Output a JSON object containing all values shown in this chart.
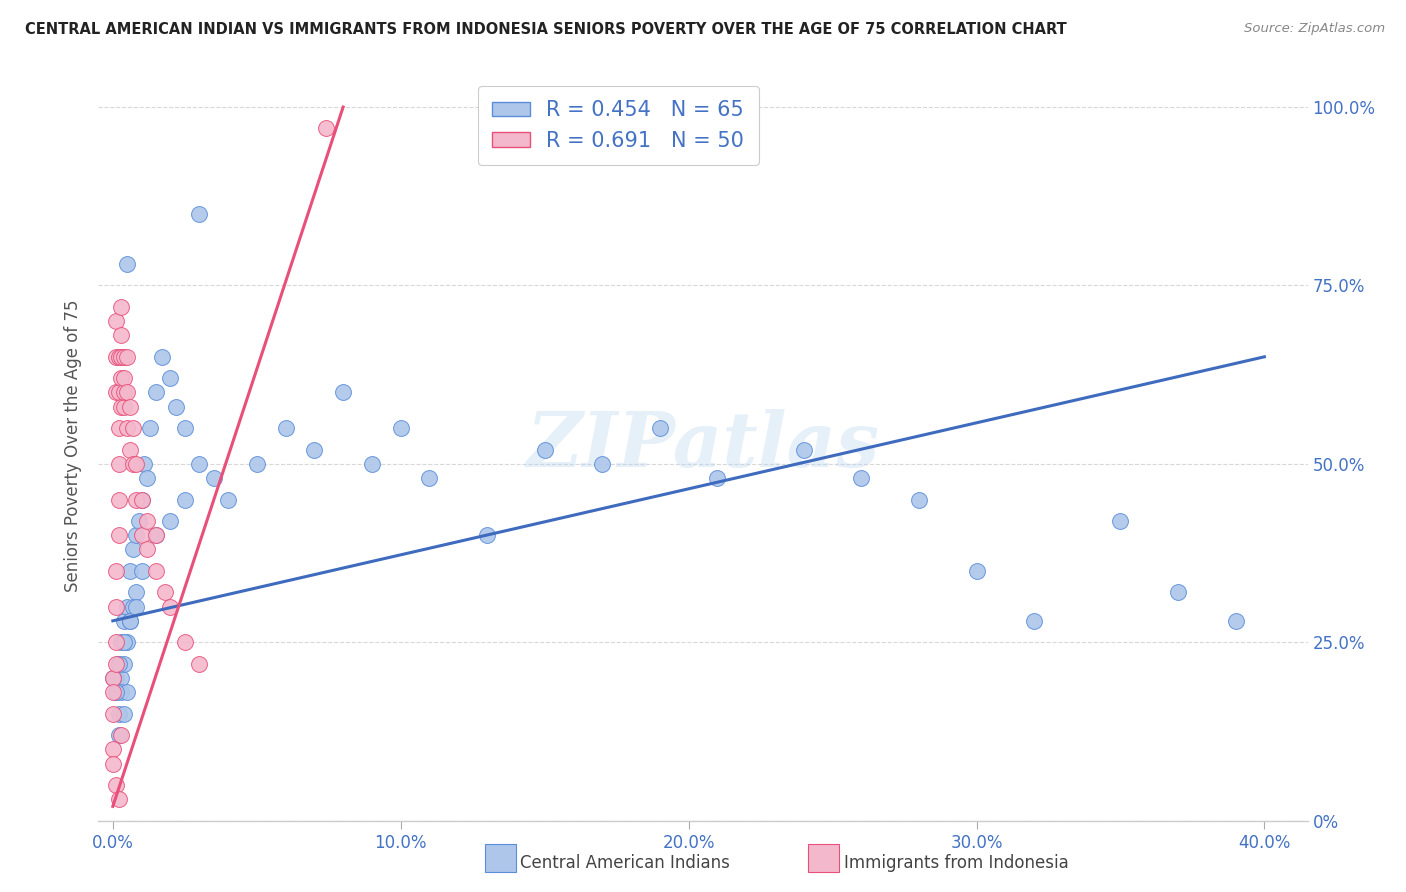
{
  "title": "CENTRAL AMERICAN INDIAN VS IMMIGRANTS FROM INDONESIA SENIORS POVERTY OVER THE AGE OF 75 CORRELATION CHART",
  "source": "Source: ZipAtlas.com",
  "ylabel_label": "Seniors Poverty Over the Age of 75",
  "blue_R": 0.454,
  "blue_N": 65,
  "pink_R": 0.691,
  "pink_N": 50,
  "blue_color": "#adc6ea",
  "pink_color": "#f4b8cc",
  "blue_edge_color": "#5b8dd9",
  "pink_edge_color": "#e8507a",
  "blue_line_color": "#3f6bbf",
  "pink_line_color": "#e8507a",
  "legend_label_blue": "Central American Indians",
  "legend_label_pink": "Immigrants from Indonesia",
  "watermark_text": "ZIPatlas",
  "background_color": "#ffffff",
  "grid_color": "#d8d8d8",
  "title_color": "#222222",
  "axis_label_color": "#555555",
  "right_ytick_color": "#4472c4",
  "xtick_color": "#4472c4",
  "blue_scatter_x": [
    0.001,
    0.001,
    0.002,
    0.002,
    0.002,
    0.003,
    0.003,
    0.003,
    0.004,
    0.004,
    0.004,
    0.005,
    0.005,
    0.005,
    0.006,
    0.006,
    0.007,
    0.007,
    0.008,
    0.008,
    0.009,
    0.01,
    0.011,
    0.012,
    0.013,
    0.015,
    0.017,
    0.02,
    0.022,
    0.025,
    0.03,
    0.035,
    0.04,
    0.05,
    0.06,
    0.07,
    0.08,
    0.09,
    0.1,
    0.11,
    0.13,
    0.15,
    0.17,
    0.19,
    0.21,
    0.24,
    0.26,
    0.28,
    0.3,
    0.32,
    0.35,
    0.37,
    0.39,
    0.0,
    0.001,
    0.002,
    0.004,
    0.006,
    0.008,
    0.01,
    0.015,
    0.02,
    0.025,
    0.03,
    0.005
  ],
  "blue_scatter_y": [
    0.2,
    0.18,
    0.22,
    0.15,
    0.12,
    0.25,
    0.2,
    0.18,
    0.28,
    0.22,
    0.15,
    0.3,
    0.25,
    0.18,
    0.35,
    0.28,
    0.38,
    0.3,
    0.4,
    0.32,
    0.42,
    0.45,
    0.5,
    0.48,
    0.55,
    0.6,
    0.65,
    0.62,
    0.58,
    0.55,
    0.5,
    0.48,
    0.45,
    0.5,
    0.55,
    0.52,
    0.6,
    0.5,
    0.55,
    0.48,
    0.4,
    0.52,
    0.5,
    0.55,
    0.48,
    0.52,
    0.48,
    0.45,
    0.35,
    0.28,
    0.42,
    0.32,
    0.28,
    0.2,
    0.18,
    0.22,
    0.25,
    0.28,
    0.3,
    0.35,
    0.4,
    0.42,
    0.45,
    0.85,
    0.78
  ],
  "pink_scatter_x": [
    0.0,
    0.0,
    0.0,
    0.0,
    0.001,
    0.001,
    0.001,
    0.001,
    0.001,
    0.001,
    0.001,
    0.002,
    0.002,
    0.002,
    0.002,
    0.002,
    0.002,
    0.003,
    0.003,
    0.003,
    0.003,
    0.003,
    0.004,
    0.004,
    0.004,
    0.004,
    0.005,
    0.005,
    0.005,
    0.006,
    0.006,
    0.007,
    0.007,
    0.008,
    0.008,
    0.01,
    0.01,
    0.012,
    0.012,
    0.015,
    0.015,
    0.018,
    0.02,
    0.025,
    0.03,
    0.0,
    0.001,
    0.002,
    0.003,
    0.074
  ],
  "pink_scatter_y": [
    0.2,
    0.18,
    0.15,
    0.1,
    0.22,
    0.25,
    0.3,
    0.35,
    0.6,
    0.65,
    0.7,
    0.4,
    0.45,
    0.5,
    0.55,
    0.6,
    0.65,
    0.58,
    0.62,
    0.65,
    0.68,
    0.72,
    0.58,
    0.6,
    0.62,
    0.65,
    0.55,
    0.6,
    0.65,
    0.52,
    0.58,
    0.5,
    0.55,
    0.45,
    0.5,
    0.4,
    0.45,
    0.38,
    0.42,
    0.35,
    0.4,
    0.32,
    0.3,
    0.25,
    0.22,
    0.08,
    0.05,
    0.03,
    0.12,
    0.97
  ],
  "blue_line_x": [
    0.0,
    0.4
  ],
  "blue_line_y": [
    0.28,
    0.65
  ],
  "pink_line_x": [
    0.0,
    0.08
  ],
  "pink_line_y": [
    0.02,
    1.0
  ],
  "xlim": [
    -0.005,
    0.415
  ],
  "ylim": [
    0.0,
    1.05
  ],
  "xtick_vals": [
    0.0,
    0.1,
    0.2,
    0.3,
    0.4
  ],
  "xtick_labels": [
    "0.0%",
    "10.0%",
    "20.0%",
    "30.0%",
    "40.0%"
  ],
  "ytick_vals": [
    0.0,
    0.25,
    0.5,
    0.75,
    1.0
  ],
  "ytick_labels_right": [
    "0%",
    "25.0%",
    "50.0%",
    "75.0%",
    "100.0%"
  ]
}
